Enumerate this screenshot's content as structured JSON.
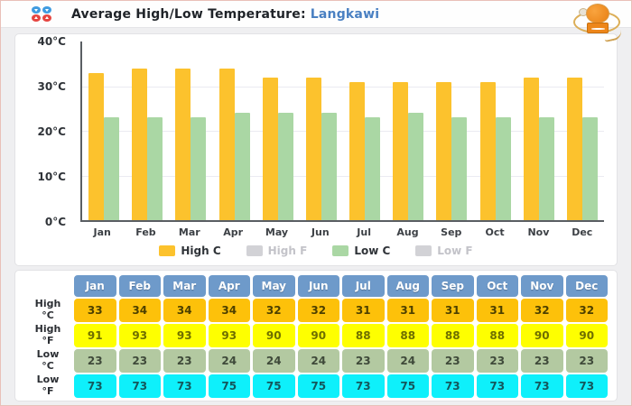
{
  "header": {
    "title": "Average High/Low Temperature:",
    "location": "Langkawi",
    "icon": "high-low-temps-icon",
    "watermark_logo": "ornate-gold-emblem"
  },
  "chart_data": {
    "type": "bar",
    "title": "Average High/Low Temperature: Langkawi",
    "categories": [
      "Jan",
      "Feb",
      "Mar",
      "Apr",
      "May",
      "Jun",
      "Jul",
      "Aug",
      "Sep",
      "Oct",
      "Nov",
      "Dec"
    ],
    "series": [
      {
        "name": "High C",
        "enabled": true,
        "color": "#fcc22d",
        "values": [
          33,
          34,
          34,
          34,
          32,
          32,
          31,
          31,
          31,
          31,
          32,
          32
        ]
      },
      {
        "name": "High F",
        "enabled": false,
        "color": "#d2d2d6",
        "values": [
          91,
          93,
          93,
          93,
          90,
          90,
          88,
          88,
          88,
          88,
          90,
          90
        ]
      },
      {
        "name": "Low C",
        "enabled": true,
        "color": "#aad7a4",
        "values": [
          23,
          23,
          23,
          24,
          24,
          24,
          23,
          24,
          23,
          23,
          23,
          23
        ]
      },
      {
        "name": "Low F",
        "enabled": false,
        "color": "#d2d2d6",
        "values": [
          73,
          73,
          73,
          75,
          75,
          75,
          73,
          75,
          73,
          73,
          73,
          73
        ]
      }
    ],
    "xlabel": "",
    "ylabel": "",
    "ylim": [
      0,
      40
    ],
    "yticks": [
      "40°C",
      "30°C",
      "20°C",
      "10°C",
      "0°C"
    ],
    "grid": true,
    "legend_position": "bottom"
  },
  "table": {
    "columns": [
      "Jan",
      "Feb",
      "Mar",
      "Apr",
      "May",
      "Jun",
      "Jul",
      "Aug",
      "Sep",
      "Oct",
      "Nov",
      "Dec"
    ],
    "rows": [
      {
        "label": "High\n°C",
        "bg": "#fdc10a",
        "text": "#4d4000",
        "values": [
          33,
          34,
          34,
          34,
          32,
          32,
          31,
          31,
          31,
          31,
          32,
          32
        ]
      },
      {
        "label": "High\n°F",
        "bg": "#feff00",
        "text": "#6f6f00",
        "values": [
          91,
          93,
          93,
          93,
          90,
          90,
          88,
          88,
          88,
          88,
          90,
          90
        ]
      },
      {
        "label": "Low\n°C",
        "bg": "#b3c9a1",
        "text": "#3f4a3a",
        "values": [
          23,
          23,
          23,
          24,
          24,
          24,
          23,
          24,
          23,
          23,
          23,
          23
        ]
      },
      {
        "label": "Low\n°F",
        "bg": "#0ef0fb",
        "text": "#14575c",
        "values": [
          73,
          73,
          73,
          75,
          75,
          75,
          73,
          75,
          73,
          73,
          73,
          73
        ]
      }
    ]
  }
}
